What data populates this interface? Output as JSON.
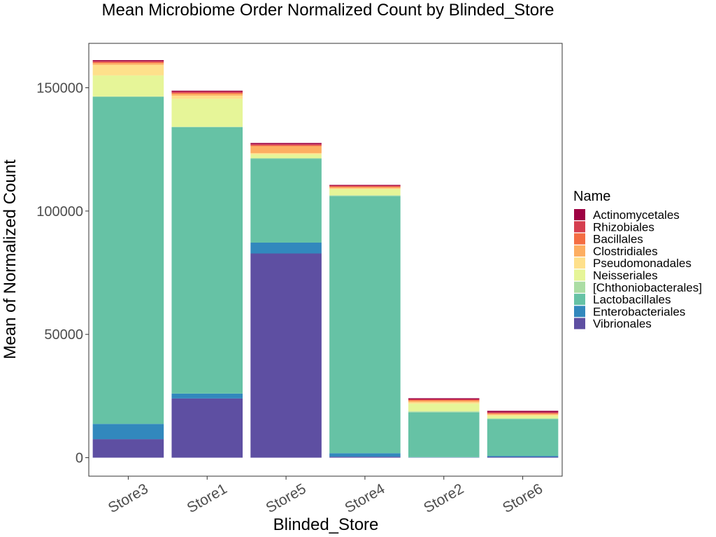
{
  "chart_data": {
    "type": "bar",
    "stacked": true,
    "title": "Mean Microbiome Order Normalized Count by Blinded_Store",
    "xlabel": "Blinded_Store",
    "ylabel": "Mean of Normalized Count",
    "ylim": [
      -7500,
      168000
    ],
    "yticks": [
      0,
      50000,
      100000,
      150000
    ],
    "ytick_labels": [
      "0",
      "50000",
      "100000",
      "150000"
    ],
    "grid": false,
    "legend_position": "right",
    "legend_title": "Name",
    "categories": [
      "Store3",
      "Store1",
      "Store5",
      "Store4",
      "Store2",
      "Store6"
    ],
    "series": [
      {
        "name": "Vibrionales",
        "color": "#5E4FA2",
        "values": [
          7500,
          24000,
          82800,
          400,
          100,
          300
        ]
      },
      {
        "name": "Enterobacteriales",
        "color": "#3288BD",
        "values": [
          6200,
          2000,
          4400,
          1400,
          100,
          400
        ]
      },
      {
        "name": "Lactobacillales",
        "color": "#66C2A5",
        "values": [
          132600,
          108000,
          34000,
          104300,
          18200,
          15000
        ]
      },
      {
        "name": "[Chthoniobacterales]",
        "color": "#ABDDA4",
        "values": [
          200,
          200,
          300,
          300,
          400,
          200
        ]
      },
      {
        "name": "Neisseriales",
        "color": "#E6F598",
        "values": [
          8500,
          11300,
          1500,
          2500,
          3100,
          1000
        ]
      },
      {
        "name": "Pseudomonadales",
        "color": "#FEE08B",
        "values": [
          4300,
          1300,
          500,
          300,
          600,
          500
        ]
      },
      {
        "name": "Clostridiales",
        "color": "#FDAE61",
        "values": [
          700,
          800,
          2800,
          500,
          600,
          400
        ]
      },
      {
        "name": "Bacillales",
        "color": "#F46D43",
        "values": [
          400,
          300,
          400,
          300,
          300,
          300
        ]
      },
      {
        "name": "Rhizobiales",
        "color": "#D53E4F",
        "values": [
          400,
          500,
          400,
          300,
          300,
          300
        ]
      },
      {
        "name": "Actinomycetales",
        "color": "#9E0142",
        "values": [
          400,
          400,
          500,
          300,
          400,
          600
        ]
      }
    ]
  }
}
